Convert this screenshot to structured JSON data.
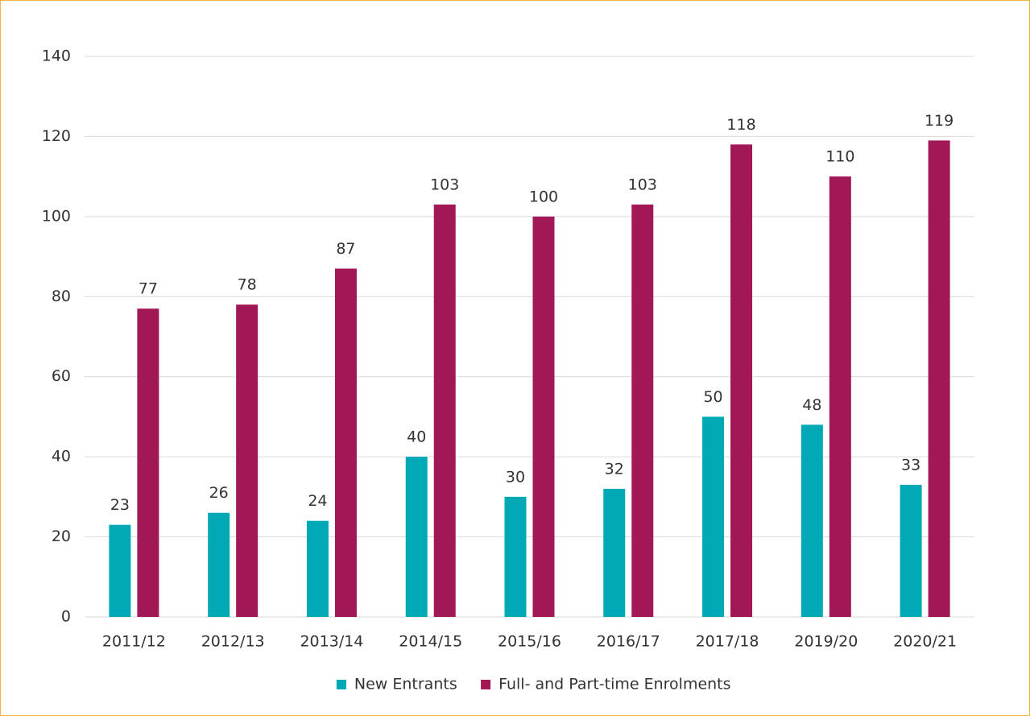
{
  "chart_data": {
    "type": "bar",
    "categories": [
      "2011/12",
      "2012/13",
      "2013/14",
      "2014/15",
      "2015/16",
      "2016/17",
      "2017/18",
      "2019/20",
      "2020/21"
    ],
    "series": [
      {
        "name": "New Entrants",
        "color": "#00a9b5",
        "values": [
          23,
          26,
          24,
          40,
          30,
          32,
          50,
          48,
          33
        ]
      },
      {
        "name": "Full- and Part-time Enrolments",
        "color": "#a21756",
        "values": [
          77,
          78,
          87,
          103,
          100,
          103,
          118,
          110,
          119
        ]
      }
    ],
    "ylim": [
      0,
      140
    ],
    "yticks": [
      0,
      20,
      40,
      60,
      80,
      100,
      120,
      140
    ],
    "grid": true,
    "legend": "bottom"
  }
}
